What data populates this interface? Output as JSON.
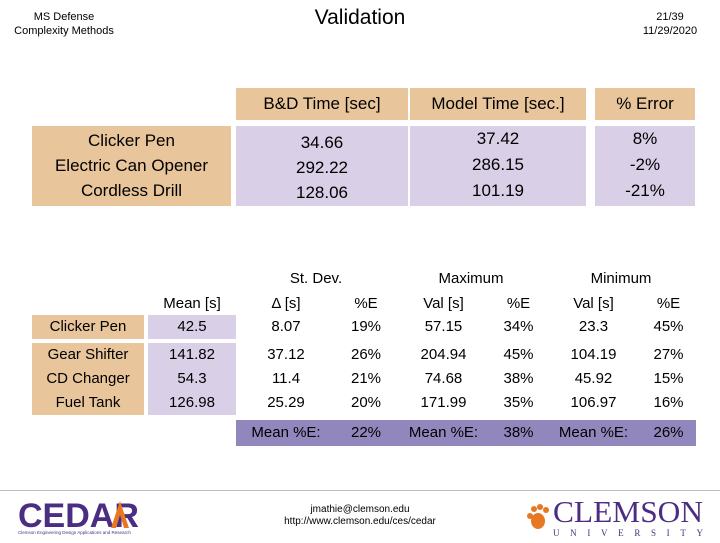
{
  "header": {
    "left_line1": "MS Defense",
    "left_line2": "Complexity Methods",
    "title": "Validation",
    "slide": "21/39",
    "date": "11/29/2020"
  },
  "table1": {
    "col_headers": [
      "B&D Time [sec]",
      "Model Time [sec.]",
      "% Error"
    ],
    "rows": [
      {
        "name": "Clicker Pen",
        "bd": "34.66",
        "model": "37.42",
        "error": "8%"
      },
      {
        "name": "Electric Can Opener",
        "bd": "292.22",
        "model": "286.15",
        "error": "-2%"
      },
      {
        "name": "Cordless Drill",
        "bd": "128.06",
        "model": "101.19",
        "error": "-21%"
      }
    ]
  },
  "table2": {
    "group_headers": [
      "St. Dev.",
      "Maximum",
      "Minimum"
    ],
    "sub_headers": {
      "mean": "Mean [s]",
      "stdev_val": "Δ [s]",
      "stdev_pe": "%E",
      "max_val": "Val [s]",
      "max_pe": "%E",
      "min_val": "Val [s]",
      "min_pe": "%E"
    },
    "rows": [
      {
        "name": "Clicker Pen",
        "mean": "42.5",
        "sd": "8.07",
        "sd_pe": "19%",
        "max": "57.15",
        "max_pe": "34%",
        "min": "23.3",
        "min_pe": "45%"
      },
      {
        "name": "Gear Shifter",
        "mean": "141.82",
        "sd": "37.12",
        "sd_pe": "26%",
        "max": "204.94",
        "max_pe": "45%",
        "min": "104.19",
        "min_pe": "27%"
      },
      {
        "name": "CD Changer",
        "mean": "54.3",
        "sd": "11.4",
        "sd_pe": "21%",
        "max": "74.68",
        "max_pe": "38%",
        "min": "45.92",
        "min_pe": "15%"
      },
      {
        "name": "Fuel Tank",
        "mean": "126.98",
        "sd": "25.29",
        "sd_pe": "20%",
        "max": "171.99",
        "max_pe": "35%",
        "min": "106.97",
        "min_pe": "16%"
      }
    ],
    "mean_label": "Mean %E:",
    "mean_sd": "22%",
    "mean_max": "38%",
    "mean_min": "26%"
  },
  "footer": {
    "email": "jmathie@clemson.edu",
    "url": "http://www.clemson.edu/ces/cedar",
    "cedar_logo": "CEDAR",
    "cedar_subtitle": "Clemson Engineering Design Applications and Research",
    "clemson_logo": "CLEMSON",
    "clemson_sub": "UNIVERSITY"
  },
  "colors": {
    "orange": "#e8c59b",
    "lilac": "#d9cfe6",
    "purple": "#9287bd"
  }
}
